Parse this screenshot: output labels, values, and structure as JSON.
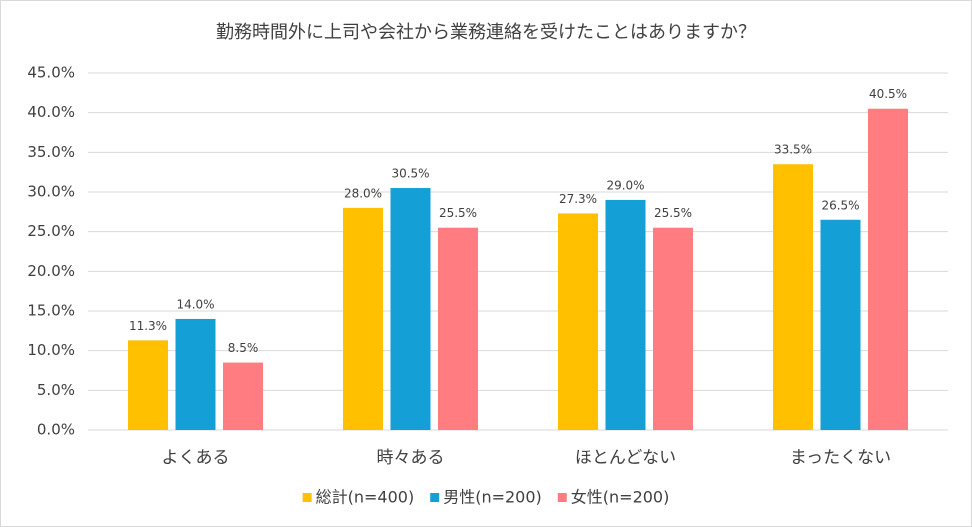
{
  "chart_data": {
    "type": "bar",
    "title": "勤務時間外に上司や会社から業務連絡を受けたことはありますか？",
    "categories": [
      "よくある",
      "時々ある",
      "ほとんどない",
      "まったくない"
    ],
    "series": [
      {
        "name": "総計(n=400)",
        "color": "#FFC000",
        "values": [
          11.3,
          28.0,
          27.3,
          33.5
        ],
        "value_labels": [
          "11.3%",
          "28.0%",
          "27.3%",
          "33.5%"
        ]
      },
      {
        "name": "男性(n=200)",
        "color": "#149FD6",
        "values": [
          14.0,
          30.5,
          29.0,
          26.5
        ],
        "value_labels": [
          "14.0%",
          "30.5%",
          "29.0%",
          "26.5%"
        ]
      },
      {
        "name": "女性(n=200)",
        "color": "#FF7C80",
        "values": [
          8.5,
          25.5,
          25.5,
          40.5
        ],
        "value_labels": [
          "8.5%",
          "25.5%",
          "25.5%",
          "40.5%"
        ]
      }
    ],
    "ylim": [
      0,
      45
    ],
    "yticks": [
      {
        "value": 0,
        "label": "0.0%"
      },
      {
        "value": 5,
        "label": "5.0%"
      },
      {
        "value": 10,
        "label": "10.0%"
      },
      {
        "value": 15,
        "label": "15.0%"
      },
      {
        "value": 20,
        "label": "20.0%"
      },
      {
        "value": 25,
        "label": "25.0%"
      },
      {
        "value": 30,
        "label": "30.0%"
      },
      {
        "value": 35,
        "label": "35.0%"
      },
      {
        "value": 40,
        "label": "40.0%"
      },
      {
        "value": 45,
        "label": "45.0%"
      }
    ],
    "grid": true,
    "legend": "bottom"
  }
}
